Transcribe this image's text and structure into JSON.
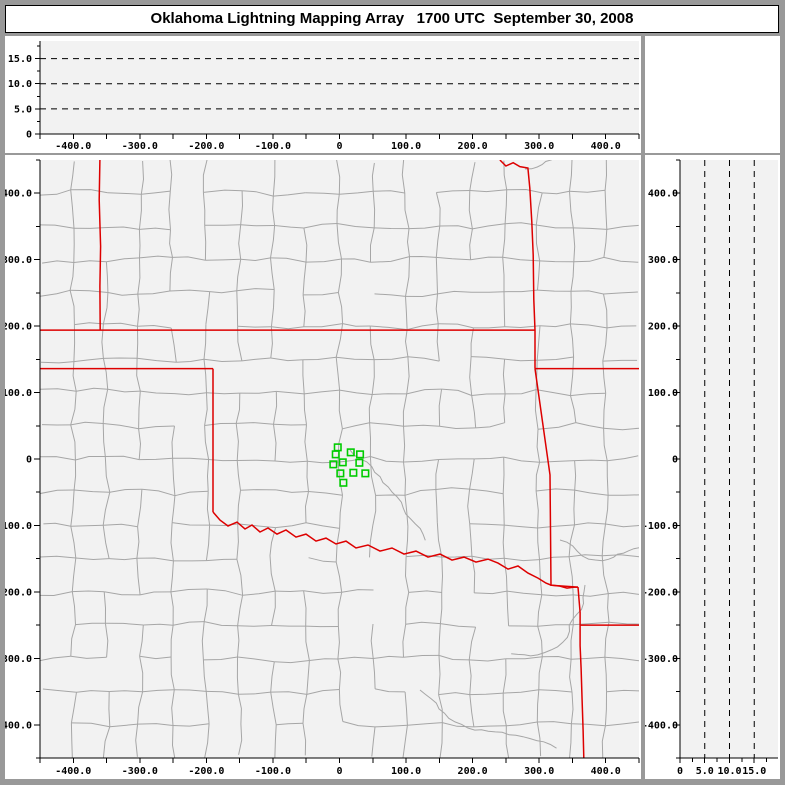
{
  "title_bar": {
    "title": "Oklahoma Lightning Mapping Array   1700 UTC  September 30, 2008"
  },
  "colors": {
    "frame": "#999999",
    "panel": "#ffffff",
    "plot_bg": "#f2f2f2",
    "axis": "#000000",
    "text": "#000000",
    "county_line": "#a6a6a6",
    "state_border": "#dd0000",
    "station": "#00cc00"
  },
  "chart_data": {
    "type": "scatter",
    "title": "Oklahoma Lightning Mapping Array",
    "time_utc": "1700 UTC",
    "date": "September 30, 2008",
    "legend_position": "none",
    "grid": "dashed-altitude-levels",
    "panels": {
      "alt_ew": {
        "description": "altitude (km) vs east-west distance (km); no lightning sources plotted",
        "x_range": [
          -450,
          450
        ],
        "y_range": [
          0,
          18.5
        ],
        "x_ticks": [
          {
            "v": -400,
            "l": "-400.0"
          },
          {
            "v": -300,
            "l": "-300.0"
          },
          {
            "v": -200,
            "l": "-200.0"
          },
          {
            "v": -100,
            "l": "-100.0"
          },
          {
            "v": 0,
            "l": "0"
          },
          {
            "v": 100,
            "l": "100.0"
          },
          {
            "v": 200,
            "l": "200.0"
          },
          {
            "v": 300,
            "l": "300.0"
          },
          {
            "v": 400,
            "l": "400.0"
          }
        ],
        "y_ticks": [
          {
            "v": 0,
            "l": "0"
          },
          {
            "v": 5,
            "l": "5.0"
          },
          {
            "v": 10,
            "l": "10.0"
          },
          {
            "v": 15,
            "l": "15.0"
          }
        ],
        "dashed_levels": [
          5,
          10,
          15
        ],
        "points": []
      },
      "map": {
        "description": "plan view map, east-west km vs north-south km, LMA stations as green squares",
        "x_range": [
          -450,
          450
        ],
        "y_range": [
          -450,
          450
        ],
        "x_ticks": [
          {
            "v": -400,
            "l": "-400.0"
          },
          {
            "v": -300,
            "l": "-300.0"
          },
          {
            "v": -200,
            "l": "-200.0"
          },
          {
            "v": -100,
            "l": "-100.0"
          },
          {
            "v": 0,
            "l": "0"
          },
          {
            "v": 100,
            "l": "100.0"
          },
          {
            "v": 200,
            "l": "200.0"
          },
          {
            "v": 300,
            "l": "300.0"
          },
          {
            "v": 400,
            "l": "400.0"
          }
        ],
        "y_ticks": [
          {
            "v": 400,
            "l": "400.0"
          },
          {
            "v": 300,
            "l": "300.0"
          },
          {
            "v": 200,
            "l": "200.0"
          },
          {
            "v": 100,
            "l": "100.0"
          },
          {
            "v": 0,
            "l": "0"
          },
          {
            "v": -100,
            "l": "-100.0"
          },
          {
            "v": -200,
            "l": "-200.0"
          },
          {
            "v": -300,
            "l": "-300.0"
          },
          {
            "v": -400,
            "l": "-400.0"
          }
        ],
        "stations_km": [
          [
            -2.7,
            17.6
          ],
          [
            16.8,
            10.1
          ],
          [
            30.8,
            7.1
          ],
          [
            -5.7,
            7.1
          ],
          [
            4.8,
            -5.0
          ],
          [
            -9.3,
            -8.0
          ],
          [
            29.7,
            -5.6
          ],
          [
            1.2,
            -21.5
          ],
          [
            20.7,
            -20.6
          ],
          [
            38.8,
            -21.5
          ],
          [
            5.7,
            -35.7
          ]
        ],
        "state_borders_km": {
          "co_ks_line": [
            [
              -360,
              450
            ],
            [
              -361,
              390
            ],
            [
              -359,
              320
            ],
            [
              -360,
              260
            ],
            [
              -359.5,
              194
            ]
          ],
          "ks_ok_north": [
            [
              -450,
              194
            ],
            [
              293.7,
              194
            ]
          ],
          "panhandle_south": [
            [
              -450,
              136
            ],
            [
              -190,
              136
            ]
          ],
          "tx_west_100w": [
            [
              -190,
              136
            ],
            [
              -190,
              -79.8
            ]
          ],
          "red_river": [
            [
              -190,
              -79.8
            ],
            [
              -179.5,
              -91.9
            ],
            [
              -167.5,
              -100.9
            ],
            [
              -154,
              -94.9
            ],
            [
              -142,
              -105.4
            ],
            [
              -131.5,
              -99.4
            ],
            [
              -119.4,
              -109.9
            ],
            [
              -107.4,
              -103.9
            ],
            [
              -93.9,
              -113
            ],
            [
              -80.4,
              -106.9
            ],
            [
              -65.4,
              -117.5
            ],
            [
              -50.3,
              -113
            ],
            [
              -35.3,
              -123.5
            ],
            [
              -20.3,
              -119
            ],
            [
              -5.3,
              -128
            ],
            [
              9.8,
              -123.5
            ],
            [
              24.8,
              -134
            ],
            [
              42.8,
              -129.5
            ],
            [
              60.9,
              -138.6
            ],
            [
              78.9,
              -134
            ],
            [
              96.9,
              -143.1
            ],
            [
              114.9,
              -138.6
            ],
            [
              133,
              -147.6
            ],
            [
              151,
              -143.1
            ],
            [
              169,
              -152.1
            ],
            [
              187.1,
              -147.6
            ],
            [
              205.1,
              -155.1
            ],
            [
              223.1,
              -150.6
            ],
            [
              238.1,
              -156.6
            ],
            [
              253.2,
              -165.7
            ],
            [
              268.2,
              -161.1
            ],
            [
              283.2,
              -171.7
            ],
            [
              298.2,
              -179.2
            ],
            [
              310.2,
              -186.7
            ],
            [
              317.8,
              -189.8
            ],
            [
              331.3,
              -191.3
            ],
            [
              341.8,
              -194.3
            ],
            [
              351,
              -193
            ],
            [
              358.4,
              -192.8
            ]
          ],
          "mo_west": [
            [
              241,
              450
            ],
            [
              250,
              441
            ],
            [
              261,
              446
            ],
            [
              271,
              440
            ],
            [
              283,
              438
            ],
            [
              286,
              408
            ],
            [
              289,
              357
            ],
            [
              291,
              307
            ],
            [
              292,
              240
            ],
            [
              293.7,
              194
            ],
            [
              293.7,
              136
            ]
          ],
          "mo_ar_south": [
            [
              293.7,
              136
            ],
            [
              450,
              136
            ]
          ],
          "ok_ar_east": [
            [
              293.7,
              136
            ],
            [
              316.3,
              -24
            ],
            [
              317.8,
              -190
            ],
            [
              358.4,
              -192.8
            ]
          ],
          "ar_tx_la": [
            [
              358.4,
              -192.8
            ],
            [
              360,
              -213
            ],
            [
              361.5,
              -231
            ],
            [
              361.5,
              -250
            ],
            [
              361.5,
              -281
            ],
            [
              363,
              -315
            ],
            [
              364.5,
              -363
            ],
            [
              366,
              -408
            ],
            [
              367,
              -450
            ]
          ],
          "ar_la_33n": [
            [
              361.5,
              -250
            ],
            [
              450,
              -250
            ]
          ]
        },
        "points": []
      },
      "alt_ns": {
        "description": "north-south distance (km) vs altitude (km); no lightning sources plotted",
        "x_range": [
          0,
          19.8
        ],
        "y_range": [
          -450,
          450
        ],
        "x_ticks": [
          {
            "v": 0,
            "l": "0"
          },
          {
            "v": 5,
            "l": "5.0"
          },
          {
            "v": 10,
            "l": "10.0"
          },
          {
            "v": 15,
            "l": "15.0"
          }
        ],
        "y_ticks": [
          {
            "v": 400,
            "l": "400.0"
          },
          {
            "v": 300,
            "l": "300.0"
          },
          {
            "v": 200,
            "l": "200.0"
          },
          {
            "v": 100,
            "l": "100.0"
          },
          {
            "v": 0,
            "l": "0"
          },
          {
            "v": -100,
            "l": "-100.0"
          },
          {
            "v": -200,
            "l": "-200.0"
          },
          {
            "v": -300,
            "l": "-300.0"
          },
          {
            "v": -400,
            "l": "-400.0"
          }
        ],
        "dashed_levels": [
          5,
          10,
          15
        ],
        "points": []
      }
    }
  }
}
